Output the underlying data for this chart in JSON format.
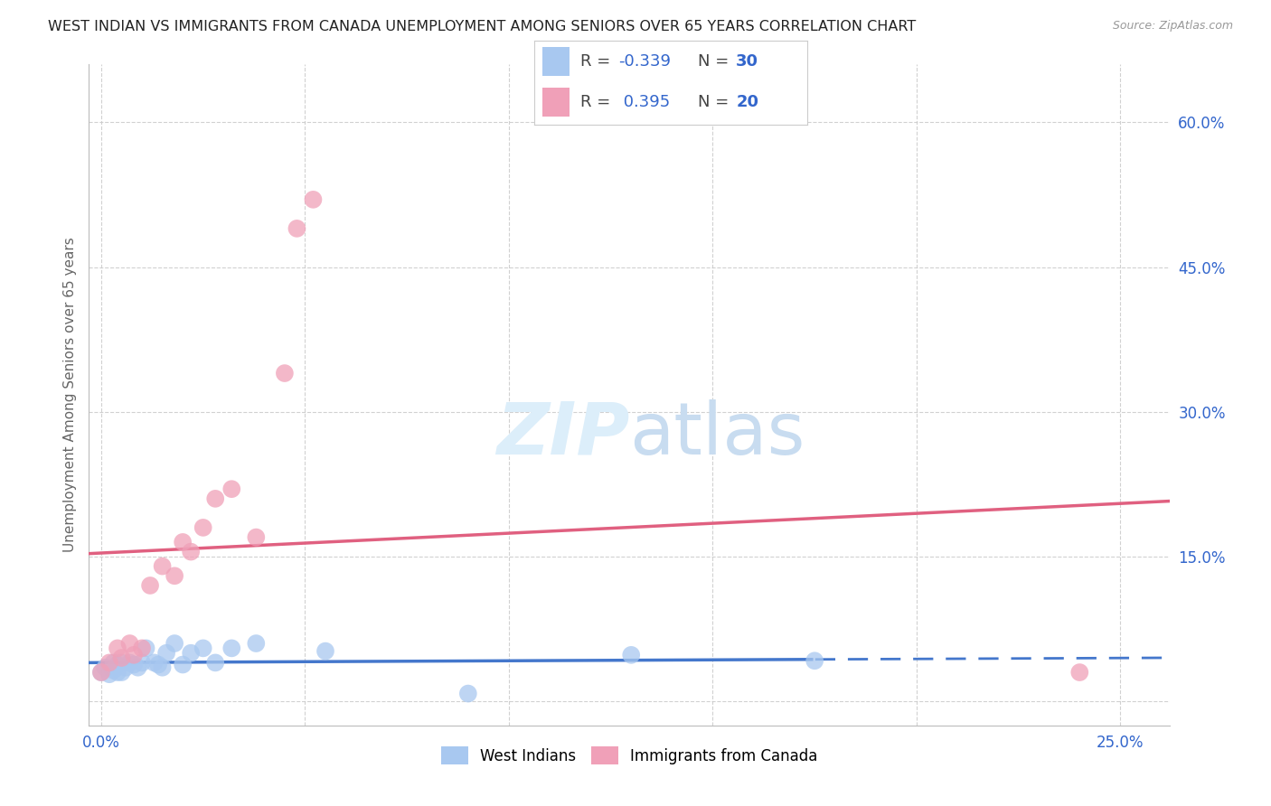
{
  "title": "WEST INDIAN VS IMMIGRANTS FROM CANADA UNEMPLOYMENT AMONG SENIORS OVER 65 YEARS CORRELATION CHART",
  "source": "Source: ZipAtlas.com",
  "ylabel": "Unemployment Among Seniors over 65 years",
  "xlim": [
    -0.003,
    0.262
  ],
  "ylim": [
    -0.025,
    0.66
  ],
  "background_color": "#ffffff",
  "legend_R1": "-0.339",
  "legend_N1": "30",
  "legend_R2": "0.395",
  "legend_N2": "20",
  "blue_color": "#A8C8F0",
  "pink_color": "#F0A0B8",
  "blue_line_color": "#4477CC",
  "pink_line_color": "#E06080",
  "blue_scatter_x": [
    0.0,
    0.001,
    0.002,
    0.003,
    0.003,
    0.004,
    0.004,
    0.005,
    0.005,
    0.006,
    0.007,
    0.008,
    0.009,
    0.01,
    0.011,
    0.013,
    0.014,
    0.015,
    0.016,
    0.018,
    0.02,
    0.022,
    0.025,
    0.028,
    0.032,
    0.038,
    0.055,
    0.09,
    0.13,
    0.175
  ],
  "blue_scatter_y": [
    0.03,
    0.035,
    0.028,
    0.032,
    0.04,
    0.03,
    0.038,
    0.03,
    0.04,
    0.035,
    0.04,
    0.038,
    0.035,
    0.04,
    0.055,
    0.04,
    0.038,
    0.035,
    0.05,
    0.06,
    0.038,
    0.05,
    0.055,
    0.04,
    0.055,
    0.06,
    0.052,
    0.008,
    0.048,
    0.042
  ],
  "pink_scatter_x": [
    0.0,
    0.002,
    0.004,
    0.005,
    0.007,
    0.008,
    0.01,
    0.012,
    0.015,
    0.018,
    0.02,
    0.022,
    0.025,
    0.028,
    0.032,
    0.038,
    0.045,
    0.048,
    0.052,
    0.24
  ],
  "pink_scatter_y": [
    0.03,
    0.04,
    0.055,
    0.045,
    0.06,
    0.048,
    0.055,
    0.12,
    0.14,
    0.13,
    0.165,
    0.155,
    0.18,
    0.21,
    0.22,
    0.17,
    0.34,
    0.49,
    0.52,
    0.03
  ],
  "blue_line_x_start": 0.0,
  "blue_line_x_solid_end": 0.175,
  "blue_line_x_end": 0.262,
  "pink_line_x_start": 0.0,
  "pink_line_x_end": 0.262
}
